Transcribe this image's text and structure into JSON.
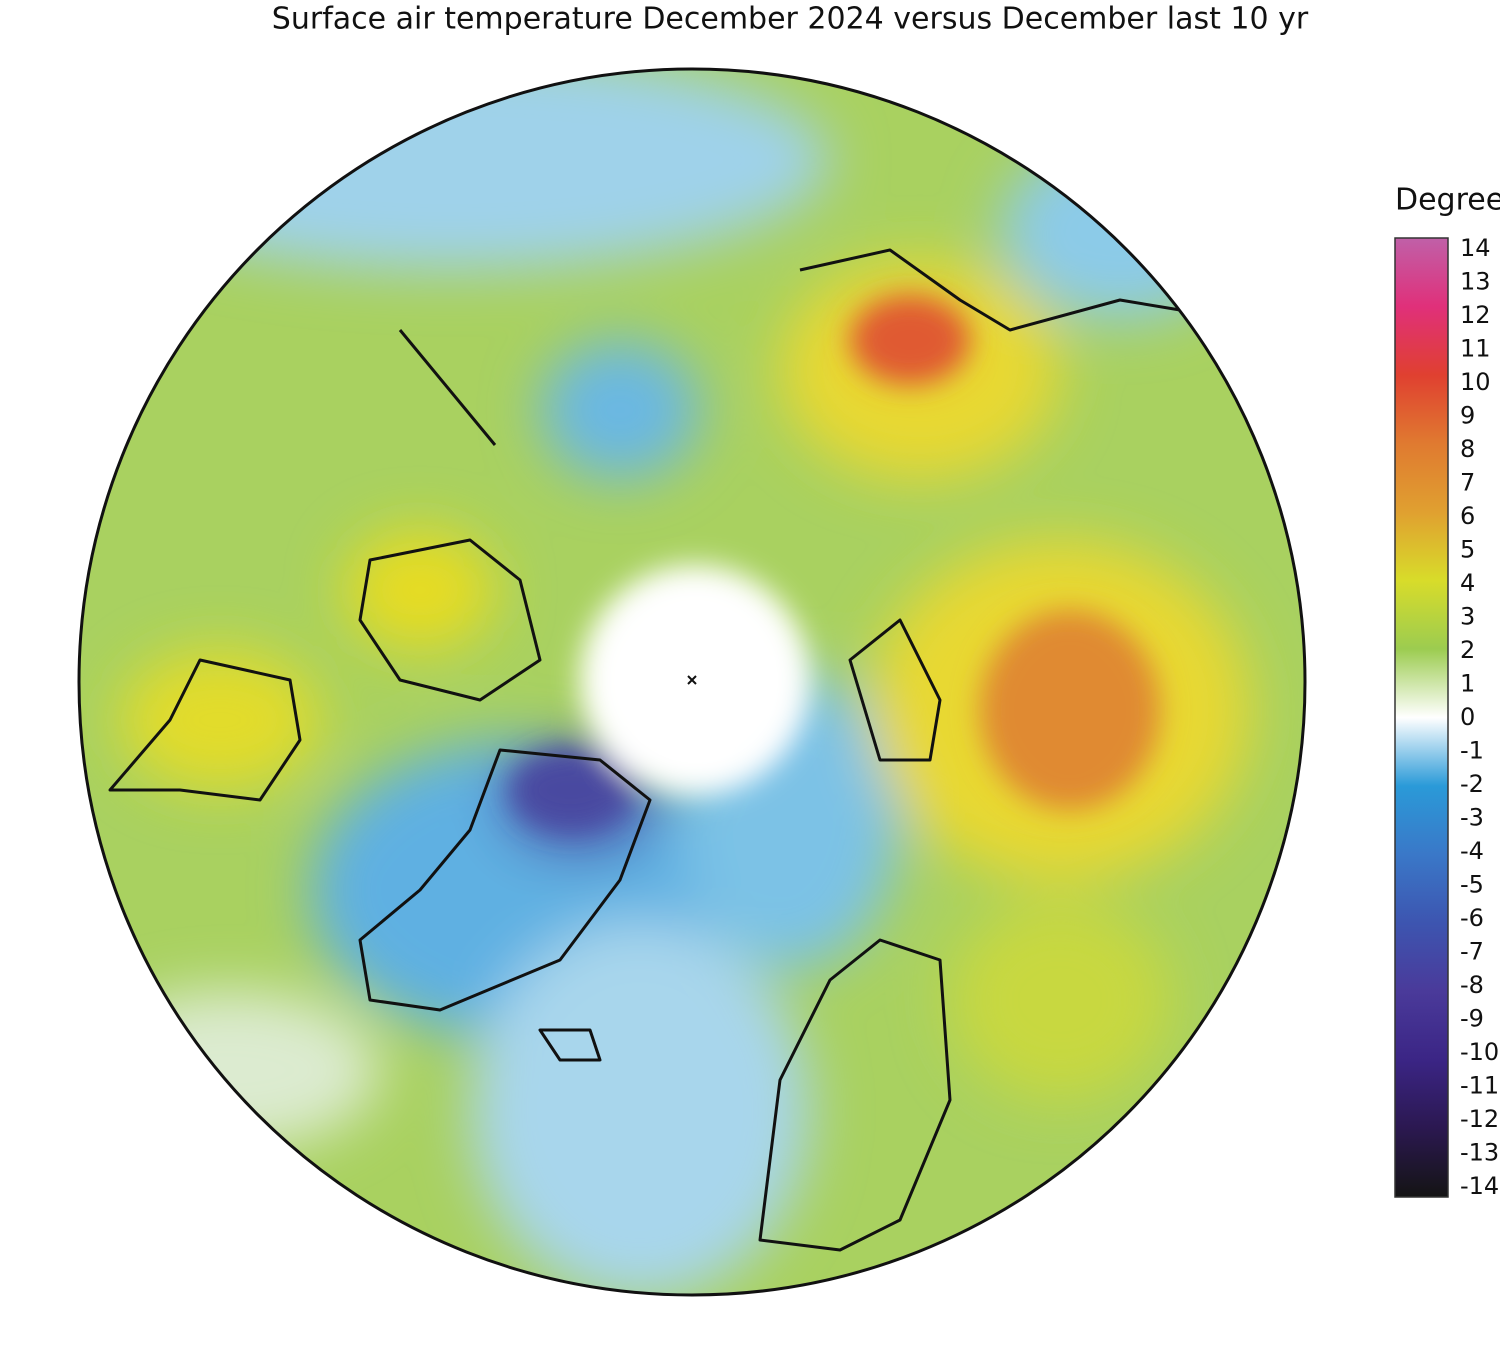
{
  "title": "Surface air temperature December 2024 versus December last 10 yr",
  "legend": {
    "title": "Degrees C",
    "ticks": [
      14,
      13,
      12,
      11,
      10,
      9,
      8,
      7,
      6,
      5,
      4,
      3,
      2,
      1,
      0,
      -1,
      -2,
      -3,
      -4,
      -5,
      -6,
      -7,
      -8,
      -9,
      -10,
      -11,
      -12,
      -13,
      -14
    ],
    "colors": [
      "#141414",
      "#2b1850",
      "#3b2585",
      "#4a3a9a",
      "#3d55b0",
      "#3a78c8",
      "#2a9ad8",
      "#ffffff",
      "#9ccc50",
      "#d8dc2a",
      "#e0a030",
      "#e07a30",
      "#e04030",
      "#e0307a",
      "#c060a8"
    ]
  }
}
